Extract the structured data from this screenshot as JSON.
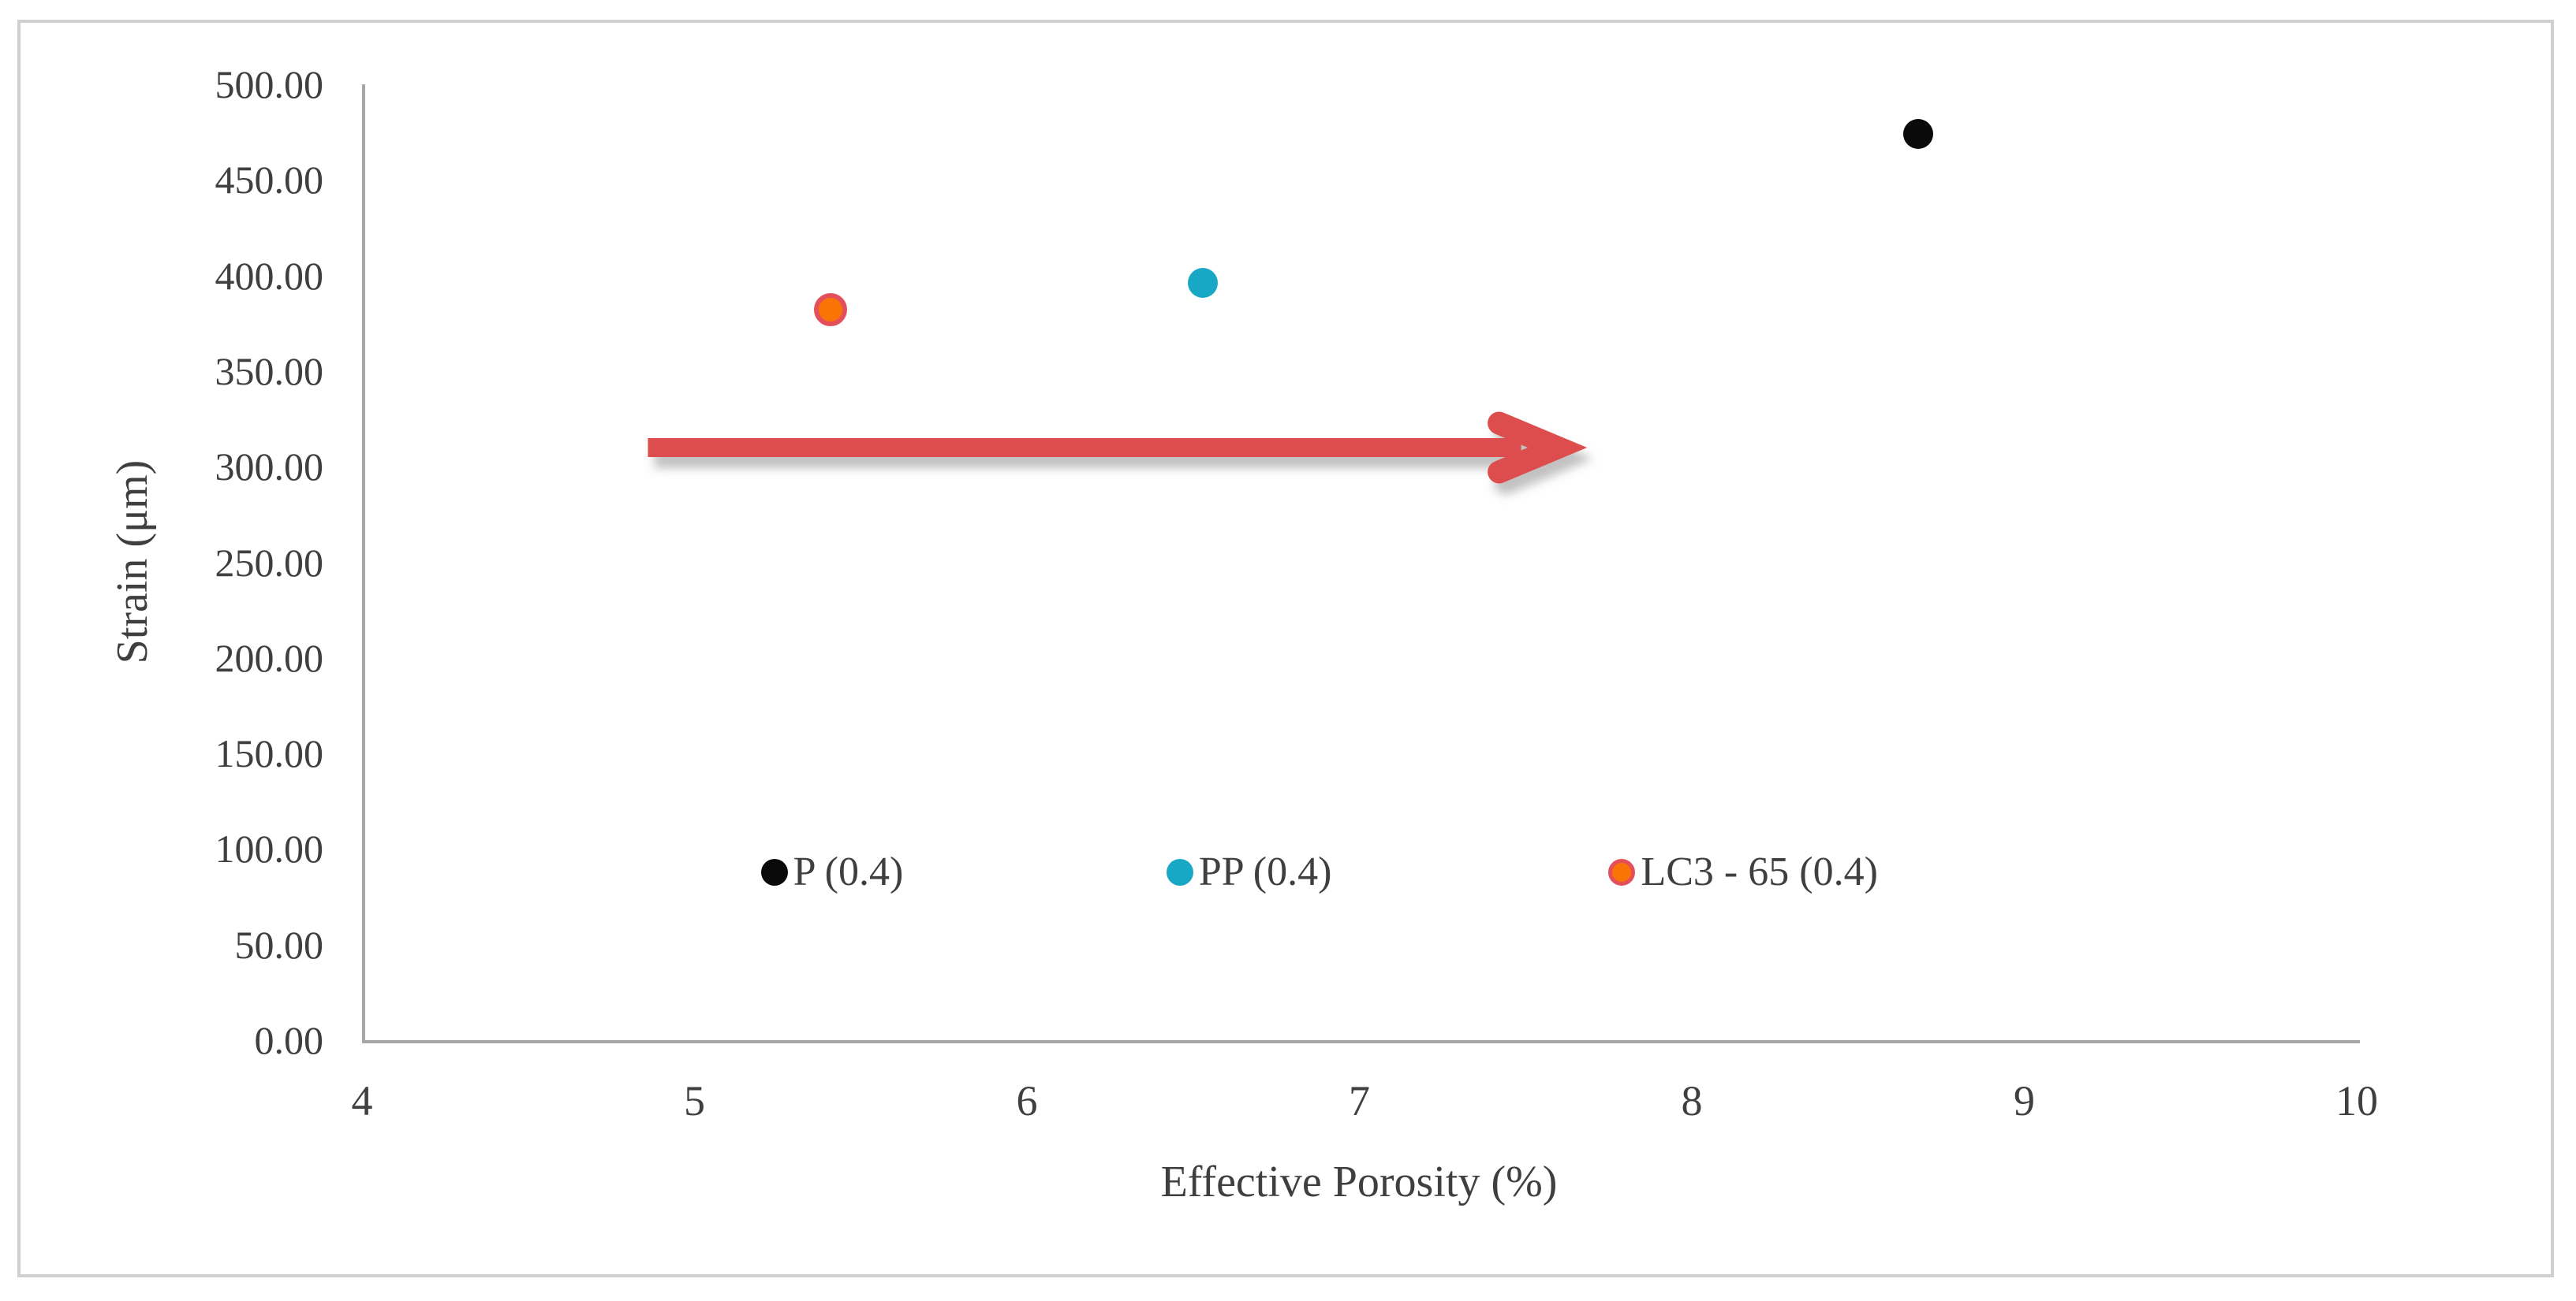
{
  "figure": {
    "background": "#ffffff",
    "border_color": "#cfcfcf"
  },
  "chart_data": {
    "type": "scatter",
    "title": "",
    "xlabel": "Effective Porosity (%)",
    "ylabel": "Strain (μm)",
    "xlim": [
      4,
      10
    ],
    "ylim": [
      0,
      500
    ],
    "xticks": [
      4,
      5,
      6,
      7,
      8,
      9,
      10
    ],
    "yticks": [
      "0.00",
      "50.00",
      "100.00",
      "150.00",
      "200.00",
      "250.00",
      "300.00",
      "350.00",
      "400.00",
      "450.00",
      "500.00"
    ],
    "grid": false,
    "axis_color": "#a6a6a6",
    "text_color": "#3f3f3f",
    "legend_position": "inside-bottom",
    "series": [
      {
        "name": "P (0.4)",
        "color": "#0a0a0a",
        "outline": null,
        "x": 8.68,
        "y": 474,
        "legend_x": 5.24,
        "legend_y": 88
      },
      {
        "name": "PP (0.4)",
        "color": "#19a7c6",
        "outline": null,
        "x": 6.53,
        "y": 396,
        "legend_x": 6.46,
        "legend_y": 88
      },
      {
        "name": "LC3 - 65 (0.4)",
        "color": "#fa7405",
        "outline": "#e44f5c",
        "x": 5.41,
        "y": 382,
        "legend_x": 7.79,
        "legend_y": 88
      }
    ],
    "annotations": [
      {
        "type": "arrow",
        "direction": "right",
        "color": "#dd4e4e",
        "x_start": 4.86,
        "x_end": 7.61,
        "y": 310
      }
    ]
  }
}
